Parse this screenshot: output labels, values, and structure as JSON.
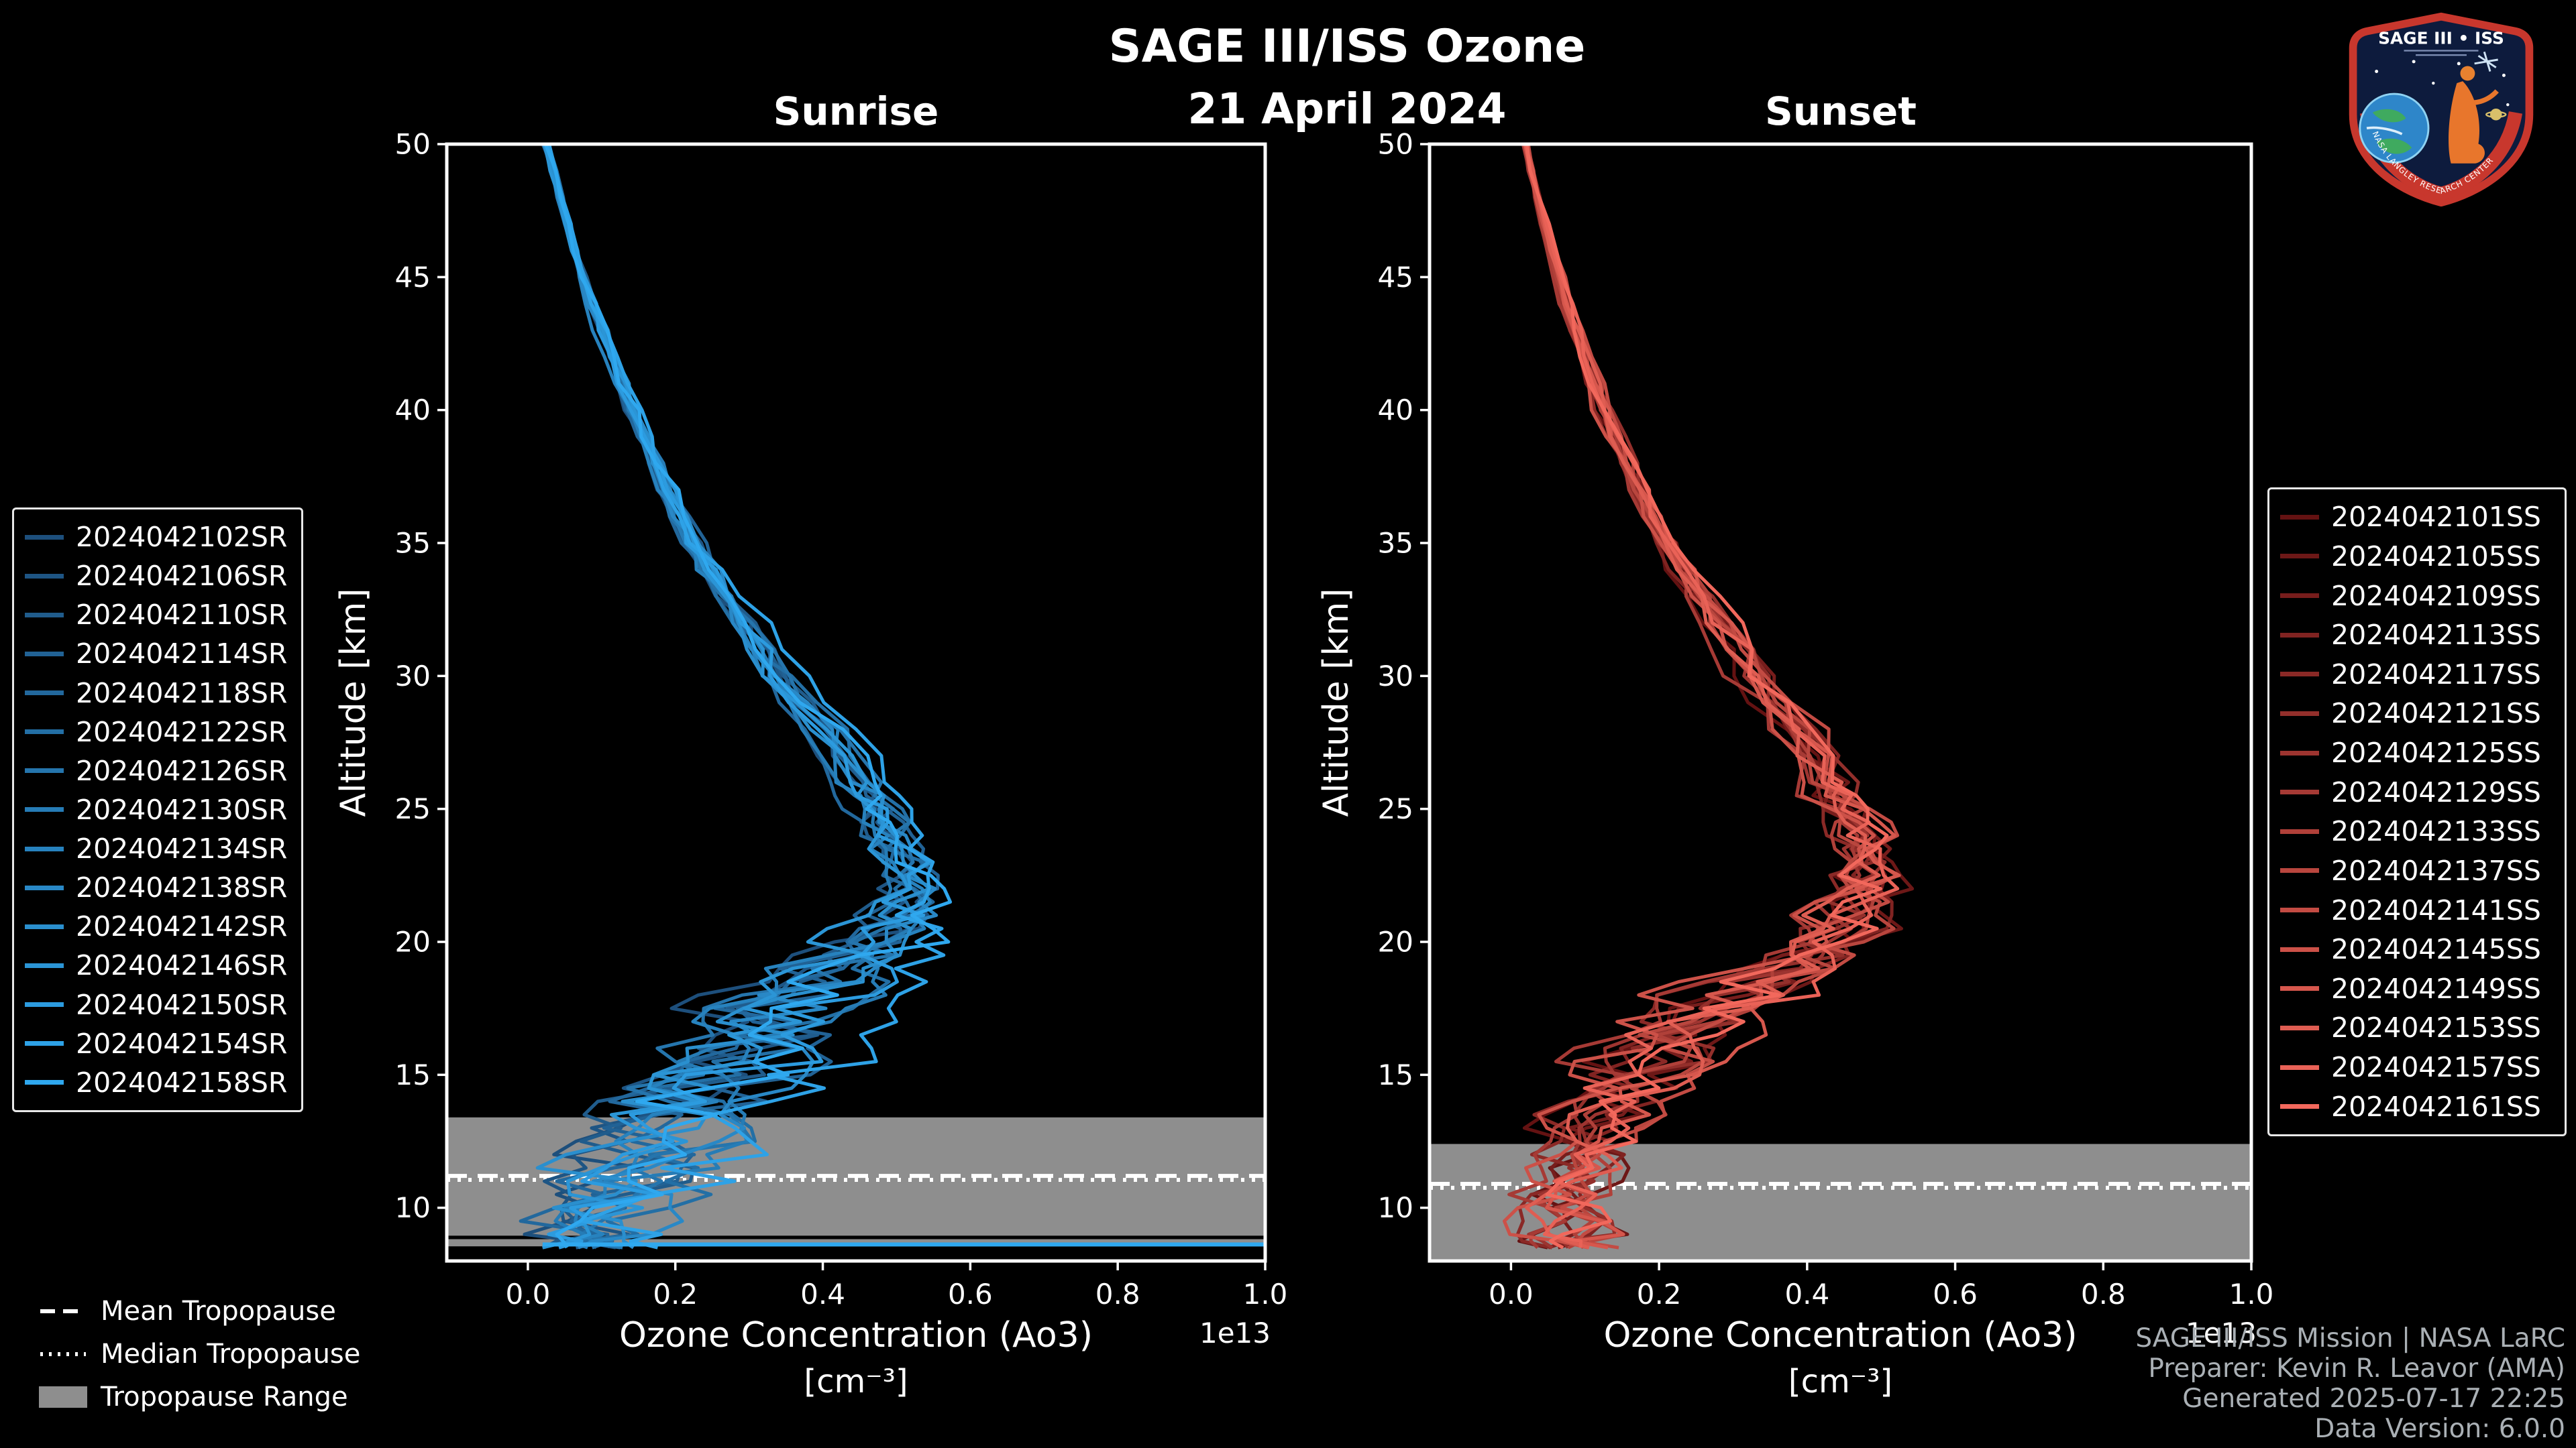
{
  "header": {
    "title": "SAGE III/ISS Ozone",
    "date": "21 April 2024",
    "left_panel_title": "Sunrise",
    "right_panel_title": "Sunset"
  },
  "logo": {
    "title": "SAGE III • ISS",
    "ring_text": "NASA LANGLEY RESEARCH CENTER"
  },
  "tropopause_legend": {
    "mean_label": "Mean Tropopause",
    "median_label": "Median Tropopause",
    "range_label": "Tropopause Range"
  },
  "credits": {
    "line1": "SAGE III/ISS Mission | NASA LaRC",
    "line2": "Preparer: Kevin R. Leavor (AMA)",
    "line3": "Generated 2025-07-17 22:25",
    "line4": "Data Version: 6.0.0"
  },
  "chart_data": [
    {
      "type": "line",
      "title": "Sunrise",
      "xlabel": "Ozone Concentration (Ao3)",
      "xlabel_units": "[cm⁻³]",
      "ylabel": "Altitude [km]",
      "offset_label": "1e13",
      "xlim": [
        -0.11,
        1.0
      ],
      "ylim": [
        8.0,
        50.0
      ],
      "xticks": [
        0.0,
        0.2,
        0.4,
        0.6,
        0.8,
        1.0
      ],
      "yticks": [
        10,
        15,
        20,
        25,
        30,
        35,
        40,
        45,
        50
      ],
      "grid": false,
      "legend_position": "outside-left",
      "color_start": "#1d4f7c",
      "color_end": "#2fa8ef",
      "series": [
        "2024042102SR",
        "2024042106SR",
        "2024042110SR",
        "2024042114SR",
        "2024042118SR",
        "2024042122SR",
        "2024042126SR",
        "2024042130SR",
        "2024042134SR",
        "2024042138SR",
        "2024042142SR",
        "2024042146SR",
        "2024042150SR",
        "2024042154SR",
        "2024042158SR"
      ],
      "profile_altitudes": [
        50,
        48,
        46,
        44,
        42,
        40,
        38,
        36,
        34,
        32,
        30,
        28,
        26,
        25,
        24,
        23,
        22,
        21,
        20,
        19,
        18,
        17,
        16,
        15,
        14,
        13,
        12,
        11,
        10,
        9,
        8.5
      ],
      "profile_values": [
        0.025,
        0.045,
        0.065,
        0.09,
        0.115,
        0.145,
        0.175,
        0.21,
        0.25,
        0.3,
        0.35,
        0.41,
        0.46,
        0.48,
        0.5,
        0.52,
        0.53,
        0.52,
        0.49,
        0.44,
        0.39,
        0.36,
        0.33,
        0.28,
        0.24,
        0.21,
        0.19,
        0.17,
        0.15,
        0.12,
        0.11
      ],
      "profile_spread": [
        0.004,
        0.005,
        0.006,
        0.008,
        0.01,
        0.012,
        0.014,
        0.016,
        0.02,
        0.024,
        0.028,
        0.03,
        0.032,
        0.034,
        0.036,
        0.04,
        0.046,
        0.06,
        0.08,
        0.095,
        0.11,
        0.12,
        0.125,
        0.12,
        0.12,
        0.11,
        0.11,
        0.11,
        0.11,
        0.09,
        0.07
      ],
      "tropopause": {
        "mean_km": 11.2,
        "median_km": 11.05,
        "range_km": [
          8.55,
          13.4
        ],
        "gap_km": [
          8.82,
          8.95
        ]
      },
      "extra_segment": {
        "altitude_km": 8.62,
        "x_start": 0.02,
        "x_end": 1.06
      }
    },
    {
      "type": "line",
      "title": "Sunset",
      "xlabel": "Ozone Concentration (Ao3)",
      "xlabel_units": "[cm⁻³]",
      "ylabel": "Altitude [km]",
      "offset_label": "1e13",
      "xlim": [
        -0.11,
        1.0
      ],
      "ylim": [
        8.0,
        50.0
      ],
      "xticks": [
        0.0,
        0.2,
        0.4,
        0.6,
        0.8,
        1.0
      ],
      "yticks": [
        10,
        15,
        20,
        25,
        30,
        35,
        40,
        45,
        50
      ],
      "grid": false,
      "legend_position": "outside-right",
      "color_start": "#641212",
      "color_end": "#f2685c",
      "series": [
        "2024042101SS",
        "2024042105SS",
        "2024042109SS",
        "2024042113SS",
        "2024042117SS",
        "2024042121SS",
        "2024042125SS",
        "2024042129SS",
        "2024042133SS",
        "2024042137SS",
        "2024042141SS",
        "2024042145SS",
        "2024042149SS",
        "2024042153SS",
        "2024042157SS",
        "2024042161SS"
      ],
      "profile_altitudes": [
        50,
        48,
        46,
        44,
        42,
        40,
        38,
        36,
        34,
        32,
        30,
        28,
        26,
        25,
        24,
        23,
        22,
        21,
        20,
        19,
        18,
        17,
        16,
        15,
        14,
        13,
        12,
        11,
        10,
        9,
        8.5
      ],
      "profile_values": [
        0.02,
        0.035,
        0.055,
        0.075,
        0.1,
        0.125,
        0.155,
        0.19,
        0.23,
        0.28,
        0.33,
        0.385,
        0.43,
        0.45,
        0.465,
        0.475,
        0.47,
        0.455,
        0.43,
        0.37,
        0.31,
        0.255,
        0.205,
        0.16,
        0.125,
        0.1,
        0.09,
        0.08,
        0.075,
        0.08,
        0.085
      ],
      "profile_spread": [
        0.004,
        0.005,
        0.006,
        0.008,
        0.01,
        0.012,
        0.014,
        0.016,
        0.02,
        0.024,
        0.028,
        0.032,
        0.036,
        0.038,
        0.04,
        0.044,
        0.05,
        0.058,
        0.068,
        0.08,
        0.09,
        0.092,
        0.09,
        0.082,
        0.075,
        0.068,
        0.065,
        0.062,
        0.065,
        0.062,
        0.058
      ],
      "tropopause": {
        "mean_km": 10.9,
        "median_km": 10.75,
        "range_km": [
          8.0,
          12.4
        ]
      }
    }
  ]
}
